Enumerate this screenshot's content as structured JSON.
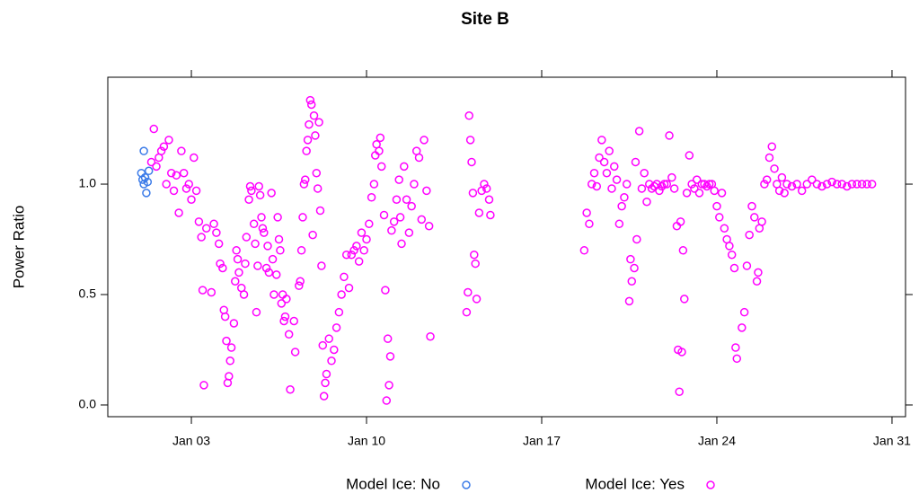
{
  "chart_data": {
    "type": "scatter",
    "title": "Site B",
    "ylabel": "Power Ratio",
    "xlim": [
      -0.34,
      31.54
    ],
    "ylim": [
      -0.053,
      1.484
    ],
    "xticks": [
      {
        "value": 3,
        "label": "Jan 03"
      },
      {
        "value": 10,
        "label": "Jan 10"
      },
      {
        "value": 17,
        "label": "Jan 17"
      },
      {
        "value": 24,
        "label": "Jan 24"
      },
      {
        "value": 31,
        "label": "Jan 31"
      }
    ],
    "yticks": [
      {
        "value": 0,
        "label": "0.0"
      },
      {
        "value": 0.5,
        "label": "0.5"
      },
      {
        "value": 1,
        "label": "1.0"
      }
    ],
    "legend": "bottom",
    "series": [
      {
        "name": "Model Ice: No",
        "color": "#3b7be8",
        "x": [
          1.0,
          1.05,
          1.1,
          1.15,
          1.2,
          1.25,
          1.3,
          1.1
        ],
        "values": [
          1.05,
          1.02,
          1.15,
          1.03,
          0.96,
          1.01,
          1.06,
          1.0
        ]
      },
      {
        "name": "Model Ice: Yes",
        "color": "#ff00ff",
        "x": [
          1.4,
          1.5,
          1.6,
          1.7,
          1.8,
          1.9,
          2.0,
          2.1,
          2.2,
          2.3,
          2.4,
          2.5,
          2.6,
          2.7,
          2.8,
          2.9,
          3.0,
          3.1,
          3.2,
          3.3,
          3.4,
          3.45,
          3.5,
          3.6,
          3.8,
          3.9,
          4.0,
          4.1,
          4.15,
          4.25,
          4.3,
          4.35,
          4.4,
          4.45,
          4.5,
          4.55,
          4.6,
          4.7,
          4.75,
          4.8,
          4.85,
          4.9,
          5.0,
          5.1,
          5.15,
          5.2,
          5.3,
          5.35,
          5.4,
          5.5,
          5.55,
          5.6,
          5.65,
          5.7,
          5.75,
          5.8,
          5.85,
          5.9,
          6.0,
          6.05,
          6.1,
          6.2,
          6.25,
          6.3,
          6.4,
          6.45,
          6.5,
          6.55,
          6.6,
          6.65,
          6.7,
          6.75,
          6.8,
          6.9,
          6.95,
          7.1,
          7.15,
          7.3,
          7.35,
          7.4,
          7.45,
          7.5,
          7.55,
          7.6,
          7.65,
          7.7,
          7.75,
          7.8,
          7.85,
          7.9,
          7.95,
          8.0,
          8.05,
          8.1,
          8.15,
          8.2,
          8.25,
          8.3,
          8.35,
          8.4,
          8.5,
          8.6,
          8.7,
          8.8,
          8.9,
          9.0,
          9.1,
          9.2,
          9.3,
          9.4,
          9.5,
          9.6,
          9.7,
          9.8,
          9.9,
          10.0,
          10.1,
          10.2,
          10.3,
          10.35,
          10.4,
          10.5,
          10.55,
          10.6,
          10.7,
          10.75,
          10.8,
          10.85,
          10.9,
          10.95,
          11.0,
          11.1,
          11.2,
          11.3,
          11.35,
          11.4,
          11.5,
          11.6,
          11.7,
          11.8,
          11.9,
          12.0,
          12.1,
          12.2,
          12.3,
          12.4,
          12.5,
          12.55,
          14.0,
          14.05,
          14.1,
          14.15,
          14.2,
          14.25,
          14.3,
          14.35,
          14.4,
          14.5,
          14.6,
          14.7,
          14.8,
          14.9,
          14.95,
          18.7,
          18.8,
          18.9,
          19.0,
          19.1,
          19.2,
          19.3,
          19.4,
          19.5,
          19.6,
          19.7,
          19.8,
          19.9,
          20.0,
          20.1,
          20.2,
          20.3,
          20.4,
          20.5,
          20.55,
          20.6,
          20.7,
          20.75,
          20.8,
          20.9,
          21.0,
          21.1,
          21.2,
          21.3,
          21.4,
          21.5,
          21.6,
          21.7,
          21.8,
          21.9,
          22.0,
          22.1,
          22.2,
          22.3,
          22.4,
          22.45,
          22.5,
          22.55,
          22.6,
          22.65,
          22.7,
          22.8,
          22.9,
          23.0,
          23.1,
          23.2,
          23.3,
          23.4,
          23.5,
          23.6,
          23.7,
          23.8,
          23.9,
          24.0,
          24.1,
          24.2,
          24.3,
          24.4,
          24.5,
          24.6,
          24.7,
          24.75,
          24.8,
          25.0,
          25.1,
          25.2,
          25.3,
          25.4,
          25.5,
          25.6,
          25.65,
          25.7,
          25.8,
          25.9,
          26.0,
          26.1,
          26.2,
          26.3,
          26.4,
          26.5,
          26.6,
          26.7,
          26.8,
          27.0,
          27.2,
          27.4,
          27.6,
          27.8,
          28.0,
          28.2,
          28.4,
          28.6,
          28.8,
          29.0,
          29.2,
          29.4,
          29.6,
          29.8,
          30.0,
          30.2
        ],
        "values": [
          1.1,
          1.25,
          1.08,
          1.12,
          1.15,
          1.17,
          1.0,
          1.2,
          1.05,
          0.97,
          1.04,
          0.87,
          1.15,
          1.05,
          0.98,
          1.0,
          0.93,
          1.12,
          0.97,
          0.83,
          0.76,
          0.52,
          0.09,
          0.8,
          0.51,
          0.82,
          0.78,
          0.73,
          0.64,
          0.62,
          0.43,
          0.4,
          0.29,
          0.1,
          0.13,
          0.2,
          0.26,
          0.37,
          0.56,
          0.7,
          0.66,
          0.6,
          0.53,
          0.5,
          0.64,
          0.76,
          0.93,
          0.99,
          0.97,
          0.82,
          0.73,
          0.42,
          0.63,
          0.99,
          0.95,
          0.85,
          0.8,
          0.78,
          0.62,
          0.72,
          0.6,
          0.96,
          0.66,
          0.5,
          0.59,
          0.85,
          0.75,
          0.7,
          0.46,
          0.5,
          0.38,
          0.4,
          0.48,
          0.32,
          0.07,
          0.38,
          0.24,
          0.54,
          0.56,
          0.7,
          0.85,
          1.0,
          1.02,
          1.15,
          1.2,
          1.27,
          1.38,
          1.36,
          0.77,
          1.31,
          1.22,
          1.05,
          0.98,
          1.28,
          0.88,
          0.63,
          0.27,
          0.04,
          0.1,
          0.14,
          0.3,
          0.2,
          0.25,
          0.35,
          0.42,
          0.5,
          0.58,
          0.68,
          0.53,
          0.68,
          0.7,
          0.72,
          0.65,
          0.78,
          0.7,
          0.75,
          0.82,
          0.94,
          1.0,
          1.13,
          1.18,
          1.15,
          1.21,
          1.08,
          0.86,
          0.52,
          0.02,
          0.3,
          0.09,
          0.22,
          0.79,
          0.83,
          0.93,
          1.02,
          0.85,
          0.73,
          1.08,
          0.93,
          0.78,
          0.9,
          1.0,
          1.15,
          1.12,
          0.84,
          1.2,
          0.97,
          0.81,
          0.31,
          0.42,
          0.51,
          1.31,
          1.2,
          1.1,
          0.96,
          0.68,
          0.64,
          0.48,
          0.87,
          0.97,
          1.0,
          0.98,
          0.93,
          0.86,
          0.7,
          0.87,
          0.82,
          1.0,
          1.05,
          0.99,
          1.12,
          1.2,
          1.1,
          1.05,
          1.15,
          0.98,
          1.08,
          1.02,
          0.82,
          0.9,
          0.94,
          1.0,
          0.47,
          0.66,
          0.56,
          0.62,
          1.1,
          0.75,
          1.24,
          0.98,
          1.05,
          0.92,
          1.0,
          0.98,
          0.99,
          1.0,
          0.97,
          0.99,
          1.0,
          1.0,
          1.22,
          1.03,
          0.98,
          0.81,
          0.25,
          0.06,
          0.83,
          0.24,
          0.7,
          0.48,
          0.96,
          1.13,
          1.0,
          0.98,
          1.02,
          0.96,
          1.0,
          1.0,
          0.99,
          1.0,
          1.0,
          0.97,
          0.9,
          0.85,
          0.96,
          0.8,
          0.75,
          0.72,
          0.68,
          0.62,
          0.26,
          0.21,
          0.35,
          0.42,
          0.63,
          0.77,
          0.9,
          0.85,
          0.56,
          0.6,
          0.8,
          0.83,
          1.0,
          1.02,
          1.12,
          1.17,
          1.07,
          1.0,
          0.97,
          1.03,
          0.96,
          1.0,
          0.99,
          1.0,
          0.97,
          1.0,
          1.02,
          1.0,
          0.99,
          1.0,
          1.01,
          1.0,
          1.0,
          0.99,
          1.0,
          1.0,
          1.0,
          1.0,
          1.0
        ]
      }
    ]
  }
}
